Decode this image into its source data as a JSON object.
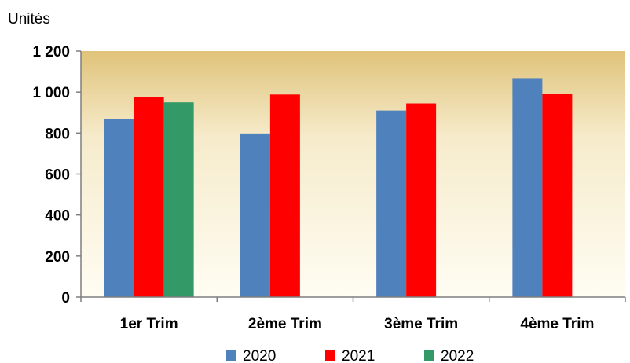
{
  "chart_data": {
    "type": "bar",
    "title": "",
    "xlabel": "",
    "ylabel": "Unités",
    "ylim": [
      0,
      1200
    ],
    "yticks": [
      0,
      200,
      400,
      600,
      800,
      1000,
      1200
    ],
    "ytick_labels": [
      "0",
      "200",
      "400",
      "600",
      "800",
      "1 000",
      "1 200"
    ],
    "grid": false,
    "legend_position": "bottom",
    "categories": [
      "1er Trim",
      "2ème Trim",
      "3ème Trim",
      "4ème Trim"
    ],
    "series": [
      {
        "name": "2020",
        "color": "#4f81bd",
        "values": [
          870,
          798,
          910,
          1068
        ]
      },
      {
        "name": "2021",
        "color": "#ff0000",
        "values": [
          975,
          988,
          945,
          993
        ]
      },
      {
        "name": "2022",
        "color": "#339966",
        "values": [
          950,
          null,
          null,
          null
        ]
      }
    ],
    "plot_background": {
      "top_color": "#e0c37a",
      "bottom_color": "#fffdf3"
    }
  }
}
